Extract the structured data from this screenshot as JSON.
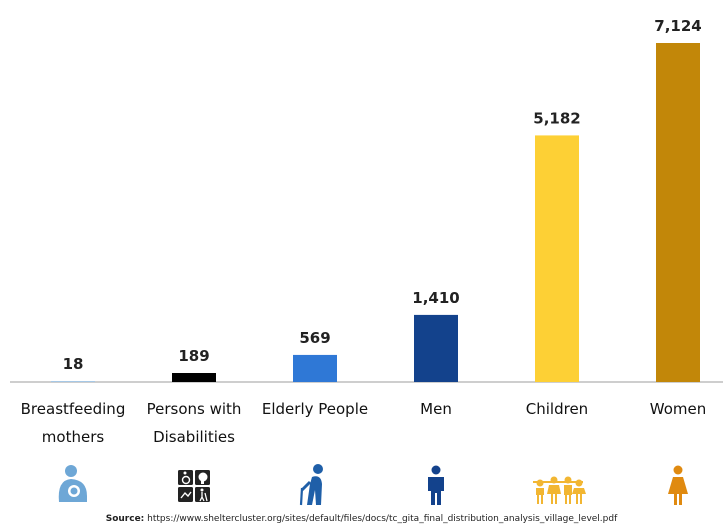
{
  "chart_data": {
    "type": "bar",
    "categories": [
      [
        "Breastfeeding",
        "mothers"
      ],
      [
        "Persons with",
        "Disabilities"
      ],
      [
        "Elderly People"
      ],
      [
        "Men"
      ],
      [
        "Children"
      ],
      [
        "Women"
      ]
    ],
    "values": [
      18,
      189,
      569,
      1410,
      5182,
      7124
    ],
    "value_labels": [
      "18",
      "189",
      "569",
      "1,410",
      "5,182",
      "7,124"
    ],
    "colors": [
      "#9cc5e8",
      "#000000",
      "#2f78d6",
      "#13428c",
      "#fdd035",
      "#c28709"
    ],
    "icons": [
      {
        "name": "breastfeeding-mother-icon",
        "color": "#6ea7d6"
      },
      {
        "name": "disability-icons-icon",
        "color": "#222222"
      },
      {
        "name": "elderly-person-icon",
        "color": "#1f5fa8"
      },
      {
        "name": "man-icon",
        "color": "#13428c"
      },
      {
        "name": "children-icon",
        "color": "#f2b632"
      },
      {
        "name": "woman-icon",
        "color": "#e08a10"
      }
    ],
    "ylim": [
      0,
      7124
    ],
    "grid": false,
    "legend": "none"
  },
  "source": {
    "label": "Source:",
    "text": " https://www.sheltercluster.org/sites/default/files/docs/tc_gita_final_distribution_analysis_village_level.pdf"
  }
}
